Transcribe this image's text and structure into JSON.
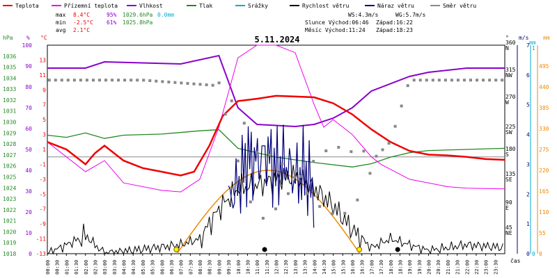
{
  "legend": [
    {
      "label": "Teplota",
      "color": "#ee0000"
    },
    {
      "label": "Přízemní teplota",
      "color": "#ee00ee"
    },
    {
      "label": "Vlhkost",
      "color": "#8800cc"
    },
    {
      "label": "Tlak",
      "color": "#228822"
    },
    {
      "label": "Srážky",
      "color": "#00aacc"
    },
    {
      "label": "Rychlost větru",
      "color": "#000000"
    },
    {
      "label": "Náraz větru",
      "color": "#000077"
    },
    {
      "label": "Směr větru",
      "color": "#888888"
    }
  ],
  "stats": {
    "max_label": "max",
    "max_temp": "8.4°C",
    "max_hum": "95%",
    "max_press": "1029.6hPa",
    "max_rain": "0.0mm",
    "min_label": "min",
    "min_temp": "-2.5°C",
    "min_hum": "61%",
    "min_press": "1025.8hPa",
    "avg_label": "avg",
    "avg_temp": "2.1°C",
    "ws": "WS:4.3m/s",
    "wg": "WG:5.7m/s",
    "sun": "Slunce Východ:06:46",
    "sun_set": "Západ:16:22",
    "moon": "Měsíc  Východ:11:24",
    "moon_set": "Západ:18:23"
  },
  "colors": {
    "temp": "#ee0000",
    "ground": "#ee00ee",
    "hum": "#8800cc",
    "press": "#228822",
    "rain": "#00aacc",
    "wind": "#000000",
    "gust": "#000077",
    "dir": "#888888",
    "sun": "#ee8800"
  },
  "chart_data": {
    "type": "line",
    "title": "5.11.2024",
    "xlabel": "čas",
    "x_ticks": [
      "00:00",
      "00:30",
      "01:00",
      "01:30",
      "02:00",
      "02:30",
      "03:00",
      "03:30",
      "04:00",
      "04:30",
      "05:00",
      "05:30",
      "06:00",
      "06:30",
      "07:00",
      "07:30",
      "08:00",
      "08:30",
      "09:00",
      "09:30",
      "10:00",
      "10:30",
      "11:00",
      "11:30",
      "12:00",
      "12:30",
      "13:00",
      "13:30",
      "14:00",
      "14:30",
      "15:00",
      "15:30",
      "16:00",
      "16:30",
      "17:00",
      "17:30",
      "18:00",
      "18:30",
      "19:00",
      "19:30",
      "20:00",
      "20:30",
      "21:00",
      "21:30",
      "22:00",
      "22:30",
      "23:00",
      "23:30"
    ],
    "axes": {
      "pressure": {
        "label": "hPa",
        "ylim": [
          1018,
          1037
        ],
        "ticks": [
          "1036",
          "1035",
          "1034",
          "1033",
          "1032",
          "1031",
          "1030",
          "1029",
          "1028",
          "1027",
          "1026",
          "1025",
          "1024",
          "1023",
          "1022",
          "1021",
          "1020",
          "1019",
          "1018"
        ]
      },
      "humidity": {
        "label": "%",
        "ylim": [
          0,
          100
        ],
        "ticks": [
          "100",
          "90",
          "80",
          "70",
          "60",
          "50",
          "40",
          "30",
          "20",
          "10",
          "0"
        ]
      },
      "temperature": {
        "label": "°C",
        "ylim": [
          -13,
          15
        ],
        "ticks": [
          "13",
          "11",
          "9",
          "7",
          "5",
          "3",
          "1",
          "-1",
          "-3",
          "-5",
          "-7",
          "-9",
          "-11",
          "-13"
        ]
      },
      "direction": {
        "label": "°",
        "ticks": [
          "360 N",
          "315 NW",
          "270 W",
          "225 SW",
          "180 S",
          "135 SE",
          "90 E",
          "45 NE"
        ]
      },
      "wind": {
        "label": "m/s",
        "ylim": [
          0,
          7
        ],
        "ticks": [
          "7",
          "6",
          "5",
          "4",
          "3",
          "2",
          "1",
          "0"
        ]
      },
      "radiation": {
        "label": "mm",
        "ticks": [
          "495",
          "440",
          "385",
          "330",
          "275",
          "220",
          "165",
          "110",
          "55",
          "0"
        ]
      },
      "rain": {
        "label": "mm",
        "ticks": [
          "1",
          "0"
        ]
      }
    },
    "series": [
      {
        "name": "Teplota",
        "values": [
          [
            0,
            2
          ],
          [
            1,
            1
          ],
          [
            2,
            -1
          ],
          [
            2.5,
            0.5
          ],
          [
            3,
            1.5
          ],
          [
            4,
            -0.5
          ],
          [
            5,
            -1.5
          ],
          [
            6,
            -2
          ],
          [
            7,
            -2.5
          ],
          [
            7.7,
            -2
          ],
          [
            8.5,
            1.5
          ],
          [
            9.2,
            5.5
          ],
          [
            10,
            7.5
          ],
          [
            11,
            7.8
          ],
          [
            12,
            8.2
          ],
          [
            13,
            8.1
          ],
          [
            14,
            8
          ],
          [
            15,
            7.2
          ],
          [
            16,
            5.7
          ],
          [
            17,
            3.7
          ],
          [
            18,
            2
          ],
          [
            19,
            0.8
          ],
          [
            20,
            0.3
          ],
          [
            21,
            0.2
          ],
          [
            22,
            0
          ],
          [
            23,
            -0.3
          ],
          [
            24,
            -0.4
          ]
        ]
      },
      {
        "name": "Přízemní teplota",
        "values": [
          [
            0,
            2
          ],
          [
            2,
            -2
          ],
          [
            3,
            -0.5
          ],
          [
            4,
            -3.5
          ],
          [
            6,
            -4.5
          ],
          [
            7,
            -4.7
          ],
          [
            8,
            -3
          ],
          [
            9,
            4
          ],
          [
            10,
            13.3
          ],
          [
            11,
            15
          ],
          [
            12,
            15
          ],
          [
            13,
            14
          ],
          [
            14,
            7
          ],
          [
            14.5,
            4
          ],
          [
            15,
            5
          ],
          [
            16,
            3
          ],
          [
            17,
            0
          ],
          [
            17.5,
            -1
          ],
          [
            19,
            -3
          ],
          [
            21,
            -4
          ],
          [
            22,
            -4.2
          ],
          [
            24,
            -4.3
          ]
        ]
      },
      {
        "name": "Vlhkost",
        "values": [
          [
            0,
            89
          ],
          [
            2,
            89
          ],
          [
            3,
            92
          ],
          [
            7,
            91
          ],
          [
            9,
            95
          ],
          [
            10,
            70
          ],
          [
            11,
            62
          ],
          [
            13,
            61
          ],
          [
            14,
            62
          ],
          [
            15,
            65
          ],
          [
            16,
            70
          ],
          [
            17,
            78
          ],
          [
            19,
            85
          ],
          [
            20,
            87
          ],
          [
            22,
            89
          ],
          [
            24,
            89
          ]
        ]
      },
      {
        "name": "Tlak",
        "values": [
          [
            0,
            1028.8
          ],
          [
            1,
            1028.6
          ],
          [
            2,
            1029
          ],
          [
            3,
            1028.5
          ],
          [
            4,
            1028.8
          ],
          [
            6,
            1028.9
          ],
          [
            8,
            1029.2
          ],
          [
            9,
            1029.3
          ],
          [
            10,
            1027.6
          ],
          [
            12,
            1026.8
          ],
          [
            14,
            1026.3
          ],
          [
            16,
            1025.9
          ],
          [
            17,
            1026.2
          ],
          [
            18,
            1026.8
          ],
          [
            19,
            1027.2
          ],
          [
            20,
            1027.4
          ],
          [
            22,
            1027.5
          ],
          [
            24,
            1027.6
          ]
        ]
      },
      {
        "name": "Rychlost větru",
        "values": [
          [
            0,
            0
          ],
          [
            1,
            0.3
          ],
          [
            2,
            0.6
          ],
          [
            3,
            0
          ],
          [
            7,
            0.3
          ],
          [
            8,
            0.5
          ],
          [
            9,
            1.5
          ],
          [
            10,
            2.2
          ],
          [
            11,
            2.3
          ],
          [
            12,
            2.5
          ],
          [
            13,
            2.6
          ],
          [
            14,
            2.2
          ],
          [
            15,
            1.6
          ],
          [
            16,
            0.8
          ],
          [
            17,
            0.2
          ],
          [
            18,
            0.5
          ],
          [
            19,
            0.3
          ],
          [
            20,
            0.1
          ],
          [
            22,
            0.3
          ],
          [
            24,
            0.2
          ]
        ]
      },
      {
        "name": "Náraz větru",
        "values": [
          [
            9.5,
            1.7
          ],
          [
            10,
            2.3
          ],
          [
            10.5,
            3.2
          ],
          [
            11,
            3.1
          ],
          [
            11.5,
            3.4
          ],
          [
            12,
            2.8
          ],
          [
            12.5,
            3.1
          ],
          [
            13,
            2.5
          ],
          [
            13.5,
            2.8
          ],
          [
            14,
            2
          ]
        ]
      },
      {
        "name": "Směr větru",
        "values": [
          [
            0,
            310
          ],
          [
            3,
            310
          ],
          [
            5,
            310
          ],
          [
            9,
            300
          ],
          [
            11,
            120
          ],
          [
            13,
            130
          ],
          [
            14,
            130
          ],
          [
            16,
            130
          ],
          [
            18,
            200
          ],
          [
            19,
            310
          ],
          [
            24,
            310
          ]
        ]
      }
    ]
  }
}
